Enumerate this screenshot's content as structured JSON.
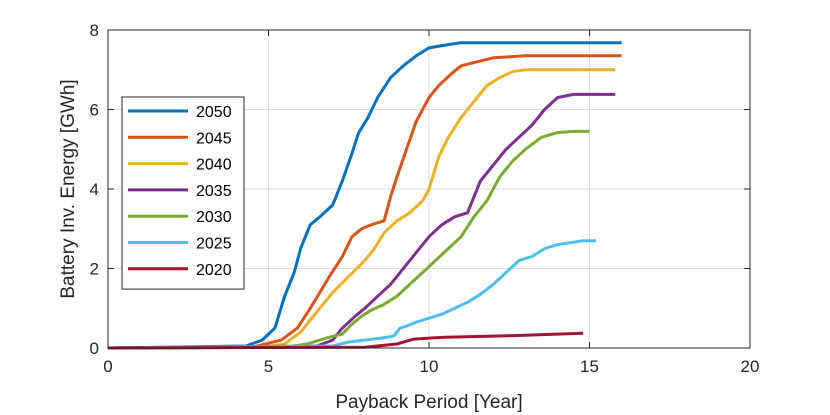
{
  "chart_data": {
    "type": "line",
    "title": "",
    "xlabel": "Payback Period [Year]",
    "ylabel": "Battery Inv. Energy [GWh]",
    "xlim": [
      0,
      20
    ],
    "ylim": [
      0,
      8
    ],
    "xticks": [
      0,
      5,
      10,
      15,
      20
    ],
    "yticks": [
      0,
      2,
      4,
      6,
      8
    ],
    "grid": true,
    "legend_position": "left",
    "series": [
      {
        "name": "2050",
        "color": "#0072BD",
        "x": [
          0,
          4.3,
          4.8,
          5.2,
          5.5,
          5.8,
          6.0,
          6.3,
          6.6,
          7.0,
          7.3,
          7.6,
          7.8,
          8.1,
          8.4,
          8.8,
          9.2,
          9.6,
          10.0,
          10.5,
          11.0,
          12.0,
          14.0,
          16.0
        ],
        "y": [
          0,
          0.05,
          0.2,
          0.5,
          1.3,
          1.9,
          2.5,
          3.1,
          3.3,
          3.6,
          4.2,
          4.9,
          5.4,
          5.8,
          6.3,
          6.8,
          7.1,
          7.35,
          7.55,
          7.62,
          7.68,
          7.68,
          7.68,
          7.68
        ]
      },
      {
        "name": "2045",
        "color": "#D95319",
        "x": [
          0,
          4.5,
          5.4,
          5.9,
          6.3,
          6.6,
          6.9,
          7.3,
          7.6,
          7.9,
          8.2,
          8.6,
          8.8,
          9.0,
          9.3,
          9.6,
          10.0,
          10.3,
          10.7,
          11.0,
          11.5,
          12.0,
          13.0,
          16.0
        ],
        "y": [
          0,
          0.02,
          0.2,
          0.5,
          1.0,
          1.4,
          1.8,
          2.3,
          2.8,
          3.0,
          3.1,
          3.2,
          3.8,
          4.3,
          5.0,
          5.7,
          6.3,
          6.6,
          6.9,
          7.1,
          7.2,
          7.3,
          7.35,
          7.35
        ]
      },
      {
        "name": "2040",
        "color": "#EDB120",
        "x": [
          0,
          4.8,
          5.5,
          6.0,
          6.5,
          7.0,
          7.5,
          8.0,
          8.3,
          8.6,
          9.0,
          9.4,
          9.8,
          10.0,
          10.3,
          10.6,
          11.0,
          11.4,
          11.8,
          12.2,
          12.6,
          13.0,
          14.0,
          15.8
        ],
        "y": [
          0,
          0.02,
          0.1,
          0.4,
          0.9,
          1.4,
          1.8,
          2.2,
          2.5,
          2.9,
          3.2,
          3.4,
          3.7,
          4.0,
          4.8,
          5.3,
          5.8,
          6.2,
          6.6,
          6.8,
          6.95,
          7.0,
          7.0,
          7.0
        ]
      },
      {
        "name": "2035",
        "color": "#7E2F8E",
        "x": [
          0,
          6.5,
          7.0,
          7.3,
          7.7,
          8.0,
          8.4,
          8.8,
          9.2,
          9.6,
          10.0,
          10.4,
          10.8,
          11.2,
          11.6,
          12.0,
          12.4,
          12.8,
          13.2,
          13.6,
          14.0,
          14.5,
          15.0,
          15.8
        ],
        "y": [
          0,
          0.05,
          0.2,
          0.5,
          0.8,
          1.0,
          1.3,
          1.6,
          2.0,
          2.4,
          2.8,
          3.1,
          3.3,
          3.4,
          4.2,
          4.6,
          5.0,
          5.3,
          5.6,
          6.0,
          6.3,
          6.38,
          6.38,
          6.38
        ]
      },
      {
        "name": "2030",
        "color": "#77AC30",
        "x": [
          0,
          5.5,
          6.2,
          6.8,
          7.3,
          7.6,
          7.9,
          8.2,
          8.6,
          9.0,
          9.4,
          9.8,
          10.2,
          10.6,
          11.0,
          11.4,
          11.8,
          12.2,
          12.6,
          13.0,
          13.5,
          14.0,
          14.5,
          15.0
        ],
        "y": [
          0,
          0.02,
          0.1,
          0.25,
          0.35,
          0.6,
          0.8,
          0.95,
          1.1,
          1.3,
          1.6,
          1.9,
          2.2,
          2.5,
          2.8,
          3.3,
          3.7,
          4.3,
          4.7,
          5.0,
          5.3,
          5.42,
          5.45,
          5.45
        ]
      },
      {
        "name": "2025",
        "color": "#4DBEEE",
        "x": [
          0,
          7.0,
          7.5,
          8.0,
          8.5,
          8.9,
          9.1,
          9.3,
          9.6,
          10.0,
          10.4,
          10.8,
          11.2,
          11.6,
          12.0,
          12.4,
          12.8,
          13.2,
          13.6,
          14.0,
          14.4,
          14.8,
          15.2
        ],
        "y": [
          0,
          0.05,
          0.15,
          0.2,
          0.25,
          0.3,
          0.5,
          0.55,
          0.65,
          0.75,
          0.85,
          1.0,
          1.15,
          1.35,
          1.6,
          1.9,
          2.2,
          2.3,
          2.5,
          2.6,
          2.65,
          2.7,
          2.7
        ]
      },
      {
        "name": "2020",
        "color": "#A2142F",
        "x": [
          0,
          8.0,
          9.0,
          9.5,
          10.0,
          10.5,
          11.0,
          12.0,
          13.0,
          14.0,
          14.8
        ],
        "y": [
          0,
          0.02,
          0.1,
          0.22,
          0.25,
          0.27,
          0.28,
          0.3,
          0.32,
          0.35,
          0.37
        ]
      }
    ]
  }
}
